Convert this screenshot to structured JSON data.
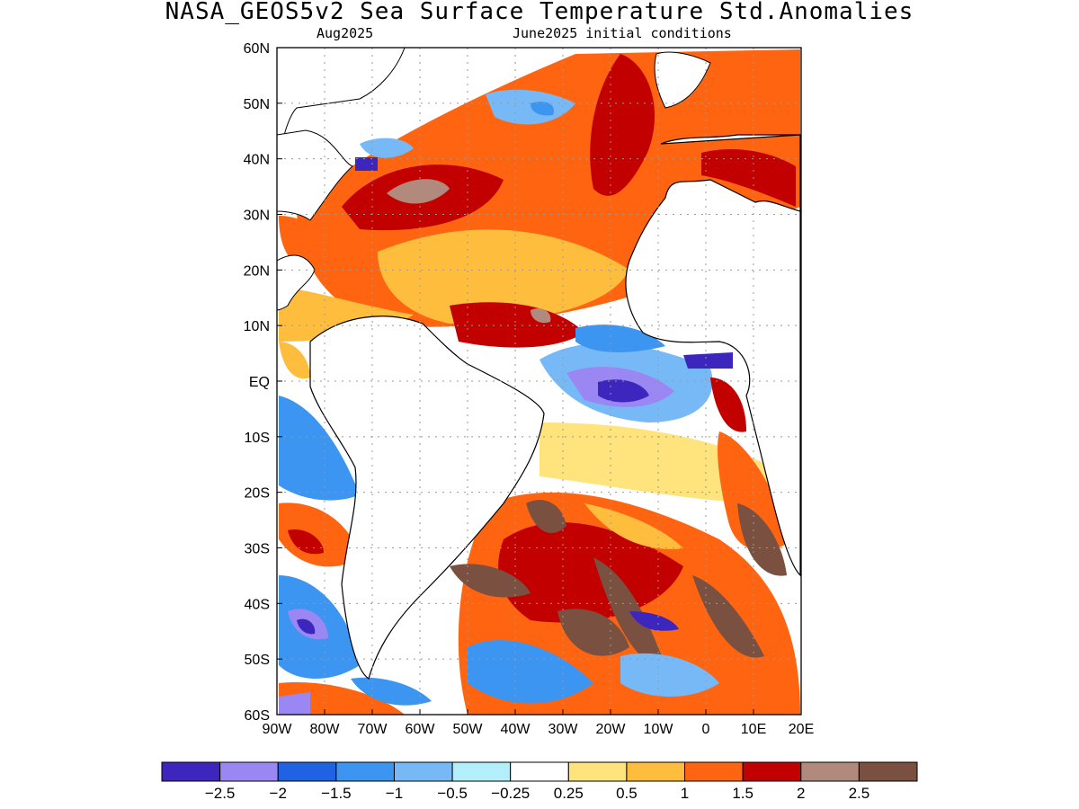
{
  "title": "NASA_GEOS5v2 Sea Surface Temperature Std.Anomalies",
  "subtitle_left": "Aug2025",
  "subtitle_right": "June2025 initial conditions",
  "map": {
    "lon_ticks": [
      "90W",
      "80W",
      "70W",
      "60W",
      "50W",
      "40W",
      "30W",
      "20W",
      "10W",
      "0",
      "10E",
      "20E"
    ],
    "lat_ticks": [
      "60N",
      "50N",
      "40N",
      "30N",
      "20N",
      "10N",
      "EQ",
      "10S",
      "20S",
      "30S",
      "40S",
      "50S",
      "60S"
    ],
    "lon_range": [
      -90,
      20
    ],
    "lat_range": [
      -60,
      60
    ],
    "grid": true
  },
  "colorbar": {
    "colors": [
      "#3d26be",
      "#9b87f4",
      "#1f63e4",
      "#3c95f1",
      "#77b9f7",
      "#b2effa",
      "#ffffff",
      "#ffe37d",
      "#ffbd3e",
      "#ff6410",
      "#c20000",
      "#b18a7d",
      "#7a5141"
    ],
    "labels": [
      "-2.5",
      "-2",
      "-1.5",
      "-1",
      "-0.5",
      "-0.25",
      "0.25",
      "0.5",
      "1",
      "1.5",
      "2",
      "2.5"
    ]
  }
}
